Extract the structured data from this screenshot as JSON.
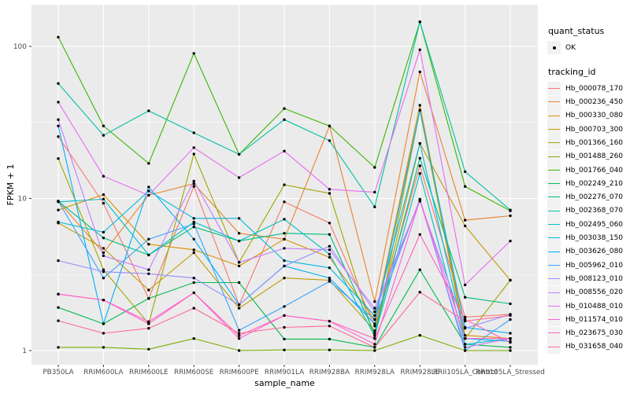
{
  "style": {
    "panel_bg": "#EBEBEB",
    "grid_color": "#FFFFFF",
    "point_color": "#000000",
    "tick_text_color": "#4D4D4D",
    "tick_mark_color": "#333333",
    "legend_key_bg": "#F2F2F2"
  },
  "legend": {
    "quant_status_title": "quant_status",
    "quant_status_ok_label": "OK",
    "ok_marker": "black-point",
    "tracking_id_title": "tracking_id"
  },
  "chart_data": {
    "type": "line",
    "title": "",
    "xlabel": "sample_name",
    "ylabel": "FPKM + 1",
    "y_scale": "log10",
    "y_ticks": [
      1,
      10,
      100
    ],
    "y_minor_ticks": [
      3.1623,
      31.623
    ],
    "ylim": [
      0.82,
      188
    ],
    "legend_position": "right",
    "grid": true,
    "quant_status": "OK",
    "point_marker": "filled-black-circle",
    "categories": [
      "PB350LA",
      "RRIM600LA",
      "RRIM600LE",
      "RRIM600SE",
      "RRIM600PE",
      "RRIM901LA",
      "RRIM928BA",
      "RRIM928LA",
      "RRIM928LE",
      "RRII105LA_Control",
      "RRII105LA_Stressed"
    ],
    "series": [
      {
        "name": "Hb_000078_170",
        "color": "#F8766D",
        "values": [
          25.5,
          9.3,
          2.2,
          12.0,
          2.0,
          9.5,
          6.9,
          1.45,
          16.4,
          1.66,
          1.73
        ]
      },
      {
        "name": "Hb_000236_450",
        "color": "#EA8331",
        "values": [
          9.6,
          4.4,
          10.5,
          12.5,
          5.9,
          5.4,
          30.0,
          2.1,
          68.0,
          7.2,
          7.7
        ]
      },
      {
        "name": "Hb_000330_080",
        "color": "#D89000",
        "values": [
          8.4,
          10.6,
          5.0,
          4.6,
          3.6,
          5.4,
          4.1,
          1.6,
          41.0,
          1.26,
          1.2
        ]
      },
      {
        "name": "Hb_000703_300",
        "color": "#C09B00",
        "values": [
          6.9,
          4.7,
          2.5,
          4.4,
          1.9,
          3.0,
          2.9,
          1.35,
          23.0,
          6.6,
          2.9
        ]
      },
      {
        "name": "Hb_001366_160",
        "color": "#A3A500",
        "values": [
          18.3,
          3.4,
          1.5,
          19.6,
          3.8,
          12.3,
          10.8,
          1.2,
          38.0,
          1.2,
          2.9
        ]
      },
      {
        "name": "Hb_001488_260",
        "color": "#7CAE00",
        "values": [
          1.05,
          1.05,
          1.02,
          1.2,
          1.0,
          1.01,
          1.01,
          1.0,
          1.26,
          1.0,
          1.0
        ]
      },
      {
        "name": "Hb_001766_040",
        "color": "#39B600",
        "values": [
          115.0,
          30.0,
          17.0,
          90.0,
          19.5,
          39.0,
          30.0,
          16.0,
          145.0,
          12.0,
          8.3
        ]
      },
      {
        "name": "Hb_002249_210",
        "color": "#00BB4E",
        "values": [
          1.92,
          1.5,
          2.2,
          2.8,
          2.8,
          1.19,
          1.19,
          1.05,
          3.4,
          1.1,
          1.05
        ]
      },
      {
        "name": "Hb_002276_070",
        "color": "#00BF7D",
        "values": [
          9.6,
          5.5,
          4.25,
          6.5,
          5.25,
          5.9,
          5.8,
          1.3,
          18.4,
          2.24,
          2.03
        ]
      },
      {
        "name": "Hb_002368_070",
        "color": "#00C1A3",
        "values": [
          57.0,
          26.0,
          37.7,
          27.0,
          19.5,
          33.0,
          24.0,
          8.8,
          145.0,
          15.0,
          8.4
        ]
      },
      {
        "name": "Hb_002495_060",
        "color": "#00BFC4",
        "values": [
          9.5,
          9.9,
          4.25,
          7.0,
          5.25,
          7.3,
          4.3,
          1.25,
          14.6,
          1.1,
          1.2
        ]
      },
      {
        "name": "Hb_003038_150",
        "color": "#00BAE0",
        "values": [
          7.0,
          6.0,
          11.2,
          7.4,
          7.4,
          3.9,
          3.5,
          1.7,
          23.0,
          1.2,
          1.15
        ]
      },
      {
        "name": "Hb_003626_080",
        "color": "#00B0F6",
        "values": [
          30.0,
          1.5,
          11.9,
          5.4,
          2.0,
          3.6,
          3.0,
          1.5,
          38.0,
          1.42,
          1.3
        ]
      },
      {
        "name": "Hb_005962_010",
        "color": "#35A2FF",
        "values": [
          9.6,
          3.0,
          5.4,
          6.8,
          1.36,
          1.95,
          2.85,
          1.6,
          9.9,
          1.0,
          1.6
        ]
      },
      {
        "name": "Hb_008123_010",
        "color": "#9590FF",
        "values": [
          3.9,
          3.3,
          3.2,
          3.0,
          2.0,
          3.6,
          4.85,
          1.8,
          9.6,
          1.4,
          1.73
        ]
      },
      {
        "name": "Hb_008556_020",
        "color": "#C77CFF",
        "values": [
          33.0,
          4.2,
          3.4,
          13.0,
          3.8,
          4.7,
          4.6,
          1.9,
          9.7,
          1.05,
          1.2
        ]
      },
      {
        "name": "Hb_010488_010",
        "color": "#E76BF3",
        "values": [
          43.0,
          14.0,
          10.5,
          21.6,
          13.7,
          20.5,
          11.5,
          11.0,
          95.0,
          2.7,
          5.25
        ]
      },
      {
        "name": "Hb_011574_010",
        "color": "#FA62DB",
        "values": [
          2.35,
          2.15,
          1.55,
          2.4,
          1.2,
          1.7,
          1.56,
          1.1,
          9.8,
          1.2,
          1.2
        ]
      },
      {
        "name": "Hb_023675_030",
        "color": "#FF62BC",
        "values": [
          2.35,
          2.15,
          1.5,
          2.4,
          1.25,
          1.7,
          1.56,
          1.2,
          5.8,
          1.6,
          1.13
        ]
      },
      {
        "name": "Hb_031658_040",
        "color": "#FF6A98",
        "values": [
          1.57,
          1.3,
          1.4,
          1.9,
          1.3,
          1.42,
          1.45,
          1.05,
          2.42,
          1.56,
          1.7
        ]
      }
    ]
  }
}
